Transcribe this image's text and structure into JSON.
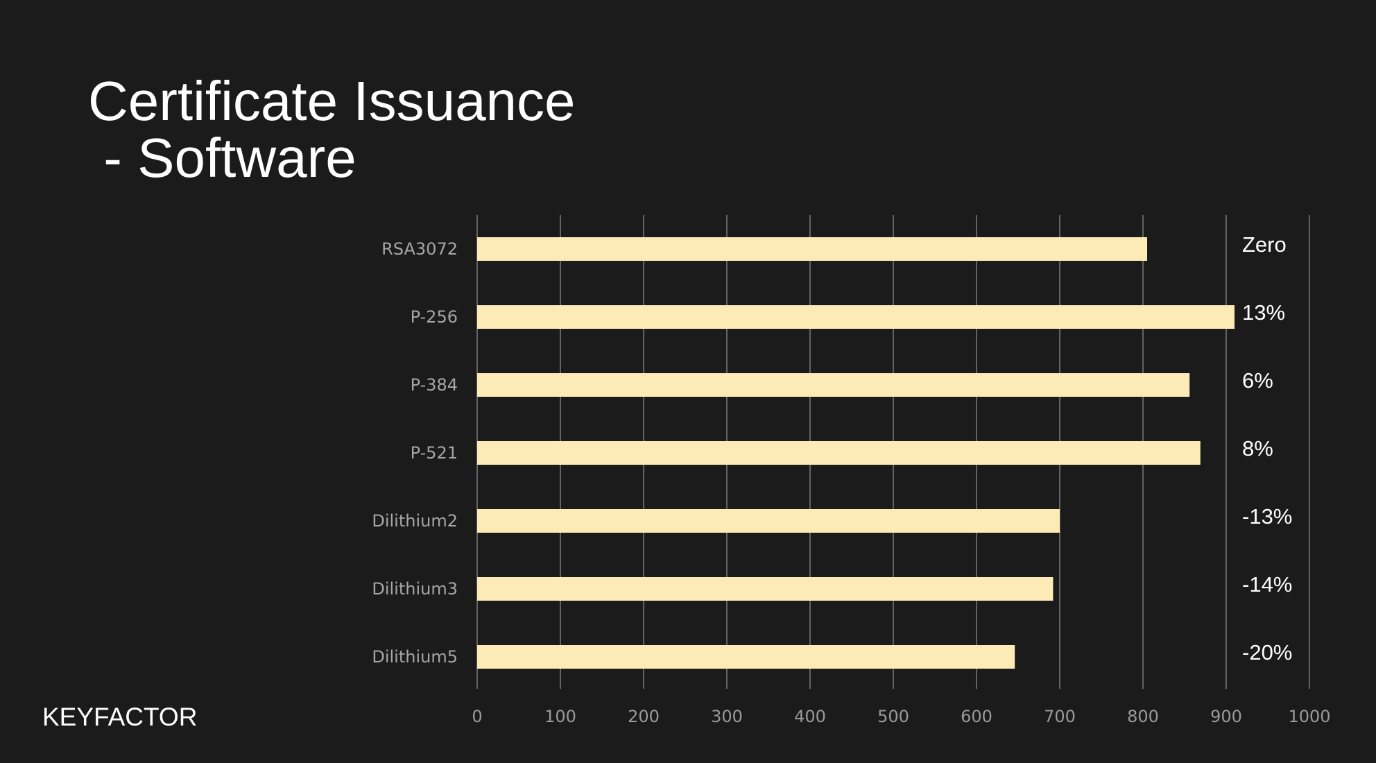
{
  "title_lines": [
    "Certificate Issuance",
    " - Software"
  ],
  "logo": "KEYFACTOR",
  "colors": {
    "background": "#1b1b1b",
    "bar": "#fcebb7",
    "grid": "#7a7a7a",
    "text": "#ffffff",
    "axis_text": "#9a9a9a"
  },
  "chart_data": {
    "type": "bar",
    "orientation": "horizontal",
    "categories": [
      "RSA3072",
      "P-256",
      "P-384",
      "P-521",
      "Dilithium2",
      "Dilithium3",
      "Dilithium5"
    ],
    "values": [
      805,
      910,
      856,
      869,
      700,
      692,
      646
    ],
    "data_labels": [
      "Zero",
      "13%",
      "6%",
      "8%",
      "-13%",
      "-14%",
      "-20%"
    ],
    "xlim": [
      0,
      1000
    ],
    "xticks": [
      0,
      100,
      200,
      300,
      400,
      500,
      600,
      700,
      800,
      900,
      1000
    ],
    "grid": true,
    "legend": "none"
  }
}
